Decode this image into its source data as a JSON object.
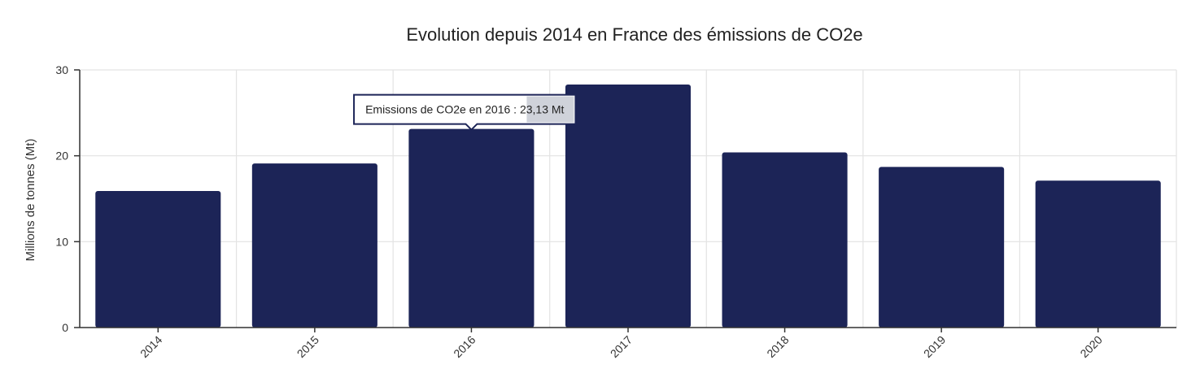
{
  "chart_data": {
    "type": "bar",
    "title": "Evolution depuis 2014 en France des émissions de CO2e",
    "xlabel": "",
    "ylabel": "Millions de tonnes (Mt)",
    "categories": [
      "2014",
      "2015",
      "2016",
      "2017",
      "2018",
      "2019",
      "2020"
    ],
    "values": [
      15.9,
      19.1,
      23.13,
      28.3,
      20.4,
      18.7,
      17.1
    ],
    "ylim": [
      0,
      30
    ],
    "yticks": [
      "0",
      "10",
      "20",
      "30"
    ],
    "grid": true,
    "bar_color": "#1c2457",
    "tooltip": {
      "text": "Emissions de CO2e en 2016 : 23,13 Mt",
      "category": "2016"
    }
  }
}
